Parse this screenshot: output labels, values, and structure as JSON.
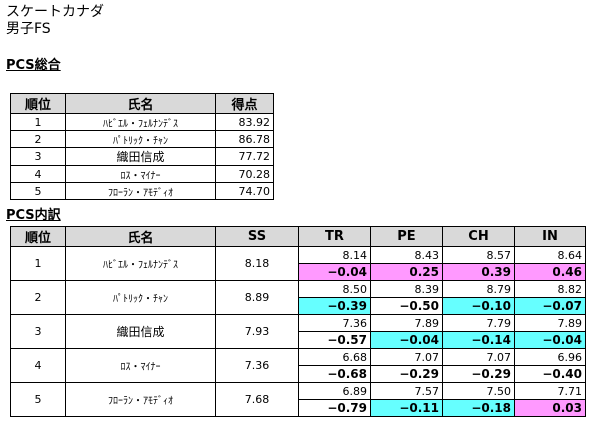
{
  "header": {
    "title": "スケートカナダ",
    "subtitle": "男子FS"
  },
  "pcs_total": {
    "section_title": "PCS総合",
    "columns": [
      "順位",
      "氏名",
      "得点"
    ],
    "rows": [
      {
        "rank": "1",
        "name": "ﾊﾋﾞｴﾙ・ﾌｪﾙﾅﾝﾃﾞｽ",
        "score": "83.92"
      },
      {
        "rank": "2",
        "name": "ﾊﾟﾄﾘｯｸ・ﾁｬﾝ",
        "score": "86.78"
      },
      {
        "rank": "3",
        "name": "織田信成",
        "score": "77.72"
      },
      {
        "rank": "4",
        "name": "ﾛｽ・ﾏｲﾅｰ",
        "score": "70.28"
      },
      {
        "rank": "5",
        "name": "ﾌﾛｰﾗﾝ・ｱﾓﾃﾞｨｵ",
        "score": "74.70"
      }
    ]
  },
  "pcs_breakdown": {
    "section_title": "PCS内訳",
    "columns": [
      "順位",
      "氏名",
      "SS",
      "TR",
      "PE",
      "CH",
      "IN"
    ],
    "rows": [
      {
        "rank": "1",
        "name": "ﾊﾋﾞｴﾙ・ﾌｪﾙﾅﾝﾃﾞｽ",
        "ss": "8.18",
        "scores": [
          "8.14",
          "8.43",
          "8.57",
          "8.64"
        ],
        "diffs": [
          "−0.04",
          "0.25",
          "0.39",
          "0.46"
        ],
        "diff_colors": [
          "pink",
          "pink",
          "pink",
          "pink"
        ]
      },
      {
        "rank": "2",
        "name": "ﾊﾟﾄﾘｯｸ・ﾁｬﾝ",
        "ss": "8.89",
        "scores": [
          "8.50",
          "8.39",
          "8.79",
          "8.82"
        ],
        "diffs": [
          "−0.39",
          "−0.50",
          "−0.10",
          "−0.07"
        ],
        "diff_colors": [
          "cyan",
          "none",
          "cyan",
          "cyan"
        ]
      },
      {
        "rank": "3",
        "name": "織田信成",
        "ss": "7.93",
        "scores": [
          "7.36",
          "7.89",
          "7.79",
          "7.89"
        ],
        "diffs": [
          "−0.57",
          "−0.04",
          "−0.14",
          "−0.04"
        ],
        "diff_colors": [
          "none",
          "cyan",
          "cyan",
          "cyan"
        ]
      },
      {
        "rank": "4",
        "name": "ﾛｽ・ﾏｲﾅｰ",
        "ss": "7.36",
        "scores": [
          "6.68",
          "7.07",
          "7.07",
          "6.96"
        ],
        "diffs": [
          "−0.68",
          "−0.29",
          "−0.29",
          "−0.40"
        ],
        "diff_colors": [
          "none",
          "none",
          "none",
          "none"
        ]
      },
      {
        "rank": "5",
        "name": "ﾌﾛｰﾗﾝ・ｱﾓﾃﾞｨｵ",
        "ss": "7.68",
        "scores": [
          "6.89",
          "7.57",
          "7.50",
          "7.71"
        ],
        "diffs": [
          "−0.79",
          "−0.11",
          "−0.18",
          "0.03"
        ],
        "diff_colors": [
          "none",
          "cyan",
          "cyan",
          "pink"
        ]
      }
    ]
  },
  "colors": {
    "pink": "#ff99ff",
    "cyan": "#66ffff",
    "header_bg": "#d9d9d9"
  }
}
